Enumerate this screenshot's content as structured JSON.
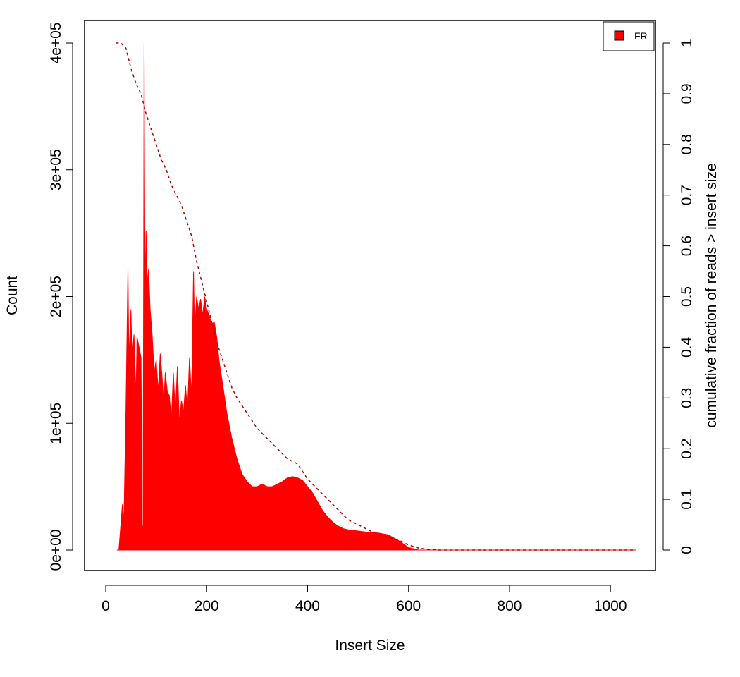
{
  "chart_data": {
    "type": "area",
    "xlabel": "Insert Size",
    "ylabel": "Count",
    "y2label": "cumulative fraction of reads > insert size",
    "xlim": [
      0,
      1050
    ],
    "ylim": [
      0,
      400000
    ],
    "y2lim": [
      0,
      1
    ],
    "x_ticks": [
      0,
      200,
      400,
      600,
      800,
      1000
    ],
    "x_tick_labels": [
      "0",
      "200",
      "400",
      "600",
      "800",
      "1000"
    ],
    "y_ticks": [
      0,
      100000,
      200000,
      300000,
      400000
    ],
    "y_tick_labels": [
      "0e+00",
      "1e+05",
      "2e+05",
      "3e+05",
      "4e+05"
    ],
    "y2_ticks": [
      0,
      0.1,
      0.2,
      0.3,
      0.4,
      0.5,
      0.6,
      0.7,
      0.8,
      0.9,
      1
    ],
    "y2_tick_labels": [
      "0",
      "0.1",
      "0.2",
      "0.3",
      "0.4",
      "0.5",
      "0.6",
      "0.7",
      "0.8",
      "0.9",
      "1"
    ],
    "legend": {
      "placement": "top-right",
      "entries": [
        "FR"
      ]
    },
    "colors": {
      "histogram": "#ff0000",
      "cumulative": "#b30000"
    },
    "series": [
      {
        "name": "FR",
        "kind": "histogram",
        "x": [
          22,
          26,
          30,
          33,
          36,
          40,
          44,
          46,
          50,
          52,
          56,
          60,
          62,
          66,
          70,
          72,
          74,
          76,
          78,
          80,
          82,
          85,
          88,
          92,
          96,
          100,
          104,
          108,
          112,
          115,
          118,
          122,
          126,
          130,
          134,
          138,
          142,
          146,
          150,
          154,
          158,
          162,
          166,
          170,
          174,
          176,
          180,
          184,
          188,
          192,
          196,
          200,
          205,
          210,
          215,
          220,
          225,
          232,
          240,
          250,
          260,
          270,
          280,
          290,
          300,
          310,
          320,
          330,
          340,
          350,
          360,
          370,
          380,
          390,
          400,
          410,
          420,
          430,
          440,
          450,
          460,
          470,
          480,
          500,
          520,
          540,
          560,
          580,
          600,
          620,
          640,
          700,
          800,
          900,
          1000,
          1050
        ],
        "values": [
          0,
          0,
          20000,
          36000,
          22000,
          110000,
          222000,
          150000,
          190000,
          152000,
          170000,
          120000,
          168000,
          160000,
          152000,
          20000,
          15000,
          400000,
          200000,
          252000,
          210000,
          222000,
          190000,
          170000,
          140000,
          150000,
          125000,
          155000,
          135000,
          115000,
          140000,
          125000,
          122000,
          102000,
          140000,
          108000,
          145000,
          100000,
          118000,
          108000,
          130000,
          110000,
          152000,
          120000,
          220000,
          170000,
          200000,
          190000,
          198000,
          185000,
          200000,
          190000,
          185000,
          178000,
          180000,
          168000,
          148000,
          130000,
          108000,
          88000,
          72000,
          60000,
          54000,
          50000,
          50000,
          52000,
          50000,
          50000,
          52000,
          54000,
          57000,
          58000,
          57000,
          55000,
          50000,
          45000,
          38000,
          31000,
          26000,
          22000,
          19000,
          17000,
          16000,
          15000,
          14000,
          13500,
          12000,
          7500,
          2000,
          0,
          0,
          0,
          0,
          0,
          0,
          0
        ]
      },
      {
        "name": "",
        "kind": "cumulative",
        "x": [
          20,
          30,
          40,
          50,
          60,
          70,
          80,
          90,
          100,
          110,
          120,
          130,
          140,
          150,
          160,
          170,
          180,
          190,
          200,
          210,
          220,
          230,
          240,
          250,
          260,
          280,
          300,
          320,
          340,
          360,
          380,
          400,
          420,
          440,
          460,
          480,
          500,
          520,
          540,
          560,
          580,
          600,
          620,
          640,
          660,
          700,
          800,
          900,
          1000,
          1050
        ],
        "values": [
          1,
          1,
          0.99,
          0.95,
          0.92,
          0.9,
          0.86,
          0.83,
          0.8,
          0.77,
          0.75,
          0.72,
          0.7,
          0.68,
          0.65,
          0.62,
          0.57,
          0.53,
          0.49,
          0.45,
          0.41,
          0.38,
          0.35,
          0.32,
          0.3,
          0.27,
          0.24,
          0.22,
          0.2,
          0.18,
          0.17,
          0.14,
          0.12,
          0.1,
          0.08,
          0.06,
          0.05,
          0.04,
          0.03,
          0.025,
          0.02,
          0.01,
          0.004,
          0.001,
          0,
          0,
          0,
          0,
          0,
          0
        ]
      }
    ]
  }
}
